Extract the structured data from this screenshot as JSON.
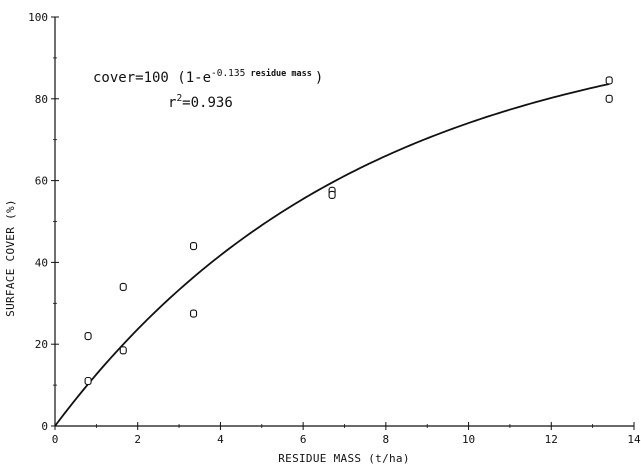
{
  "chart_data": {
    "type": "scatter",
    "xlabel": "RESIDUE MASS (t/ha)",
    "ylabel": "SURFACE COVER (%)",
    "xlim": [
      0,
      14
    ],
    "ylim": [
      0,
      100
    ],
    "x_ticks": [
      0,
      2,
      4,
      6,
      8,
      10,
      12,
      14
    ],
    "y_ticks": [
      0,
      20,
      40,
      60,
      80,
      100
    ],
    "grid": false,
    "legend": "none",
    "points": [
      {
        "x": 0.8,
        "y": 22
      },
      {
        "x": 0.8,
        "y": 11
      },
      {
        "x": 1.65,
        "y": 34
      },
      {
        "x": 1.65,
        "y": 18.5
      },
      {
        "x": 3.35,
        "y": 44
      },
      {
        "x": 3.35,
        "y": 27.5
      },
      {
        "x": 6.7,
        "y": 57.5
      },
      {
        "x": 6.7,
        "y": 56.5
      },
      {
        "x": 13.4,
        "y": 84.5
      },
      {
        "x": 13.4,
        "y": 80
      }
    ],
    "fit": {
      "label_left": "cover=100 (1-e",
      "exponent": "-0.135",
      "exponent_term": "residue mass",
      "label_right": ")",
      "r2_label": "r",
      "r2_sup": "2",
      "r2_value": "=0.936",
      "coefficient": 100,
      "rate": 0.135
    }
  }
}
